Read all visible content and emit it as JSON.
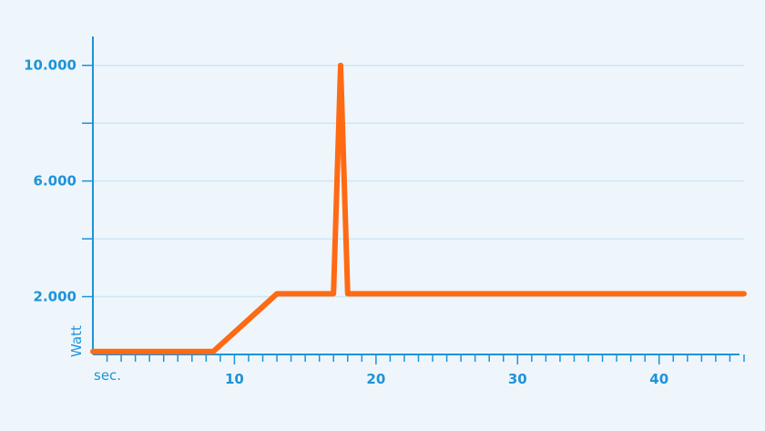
{
  "chart_data": {
    "type": "line",
    "xlabel": "sec.",
    "ylabel": "Watt",
    "xlim": [
      0,
      46
    ],
    "ylim": [
      0,
      11000
    ],
    "x_ticks": [
      10,
      20,
      30,
      40
    ],
    "x_tick_labels": [
      "10",
      "20",
      "30",
      "40"
    ],
    "x_minor_step": 1,
    "y_ticks": [
      2000,
      6000,
      10000
    ],
    "y_tick_labels": [
      "2.000",
      "6.000",
      "10.000"
    ],
    "y_minor_ticks": [
      4000,
      8000
    ],
    "grid": true,
    "colors": {
      "axis": "#1e93d8",
      "grid": "#cce6f6",
      "series": "#ff6a13",
      "background": "#eef6fc"
    },
    "series": [
      {
        "x": [
          0,
          8.5,
          13,
          17,
          17.5,
          18,
          46
        ],
        "y": [
          100,
          100,
          2100,
          2100,
          10000,
          2100,
          2100
        ]
      }
    ]
  }
}
